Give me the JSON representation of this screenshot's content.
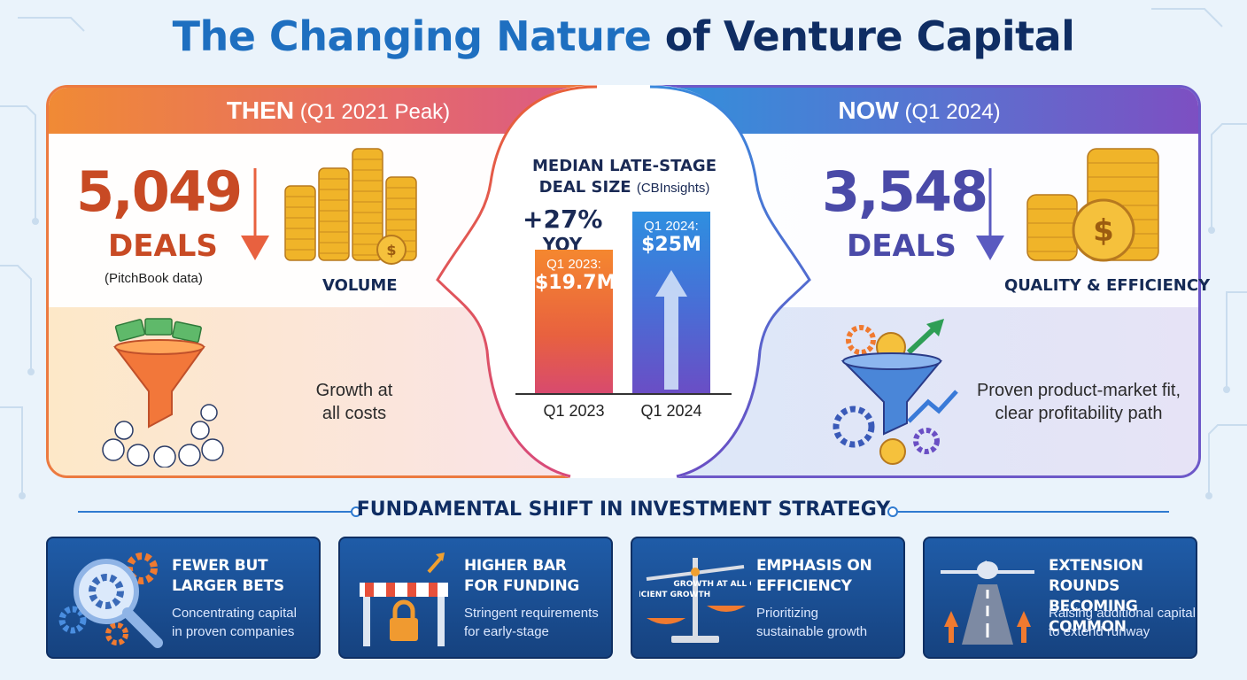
{
  "title": {
    "part1": "The Changing Nature",
    "part2": "of Venture Capital"
  },
  "then": {
    "heading_bold": "THEN",
    "heading_rest": "(Q1 2021 Peak)",
    "deals_number": "5,049",
    "deals_unit": "DEALS",
    "source": "(PitchBook data)",
    "icon_label": "VOLUME",
    "description_line1": "Growth at",
    "description_line2": "all costs"
  },
  "now": {
    "heading_bold": "NOW",
    "heading_rest": "(Q1 2024)",
    "deals_number": "3,548",
    "deals_unit": "DEALS",
    "icon_label": "QUALITY & EFFICIENCY",
    "description_line1": "Proven product-market fit,",
    "description_line2": "clear profitability path"
  },
  "center_chart": {
    "title_line1": "MEDIAN LATE-STAGE",
    "title_line2": "DEAL SIZE",
    "source": "(CBInsights)",
    "yoy_pct": "+27%",
    "yoy_label": "YOY"
  },
  "chart_data": {
    "type": "bar",
    "title": "MEDIAN LATE-STAGE DEAL SIZE (CBInsights)",
    "categories": [
      "Q1 2023",
      "Q1 2024"
    ],
    "values": [
      19.7,
      25
    ],
    "unit": "$M",
    "bar_labels": [
      {
        "small": "Q1 2023:",
        "big": "$19.7M"
      },
      {
        "small": "Q1 2024:",
        "big": "$25M"
      }
    ],
    "annotation": "+27% YOY",
    "colors": [
      "#e8613f",
      "#4a6cd5"
    ]
  },
  "shift_title": "FUNDAMENTAL SHIFT IN INVESTMENT STRATEGY",
  "cards": [
    {
      "title_line1": "FEWER BUT",
      "title_line2": "LARGER BETS",
      "desc_line1": "Concentrating capital",
      "desc_line2": "in proven companies",
      "icon": "magnifier-gears-icon"
    },
    {
      "title_line1": "HIGHER BAR",
      "title_line2": "FOR FUNDING",
      "desc_line1": "Stringent requirements",
      "desc_line2": "for early-stage",
      "icon": "barrier-lock-icon"
    },
    {
      "title_line1": "EMPHASIS ON",
      "title_line2": "EFFICIENCY",
      "desc_line1": "Prioritizing",
      "desc_line2": "sustainable growth",
      "icon": "balance-scale-icon",
      "scale_left": "EFFICIENT GROWTH",
      "scale_right": "GROWTH AT ALL COSTS"
    },
    {
      "title_line1": "EXTENSION ROUNDS",
      "title_line2": "BECOMING COMMON",
      "desc_line1": "Raising additional capital",
      "desc_line2": "to extend runway",
      "icon": "airplane-runway-icon"
    }
  ],
  "colors": {
    "then_accent": "#c84a24",
    "now_accent": "#4a4aa8",
    "title_blue": "#1e6fc0",
    "title_navy": "#0f2d63",
    "card_bg": "#1a4d93"
  }
}
